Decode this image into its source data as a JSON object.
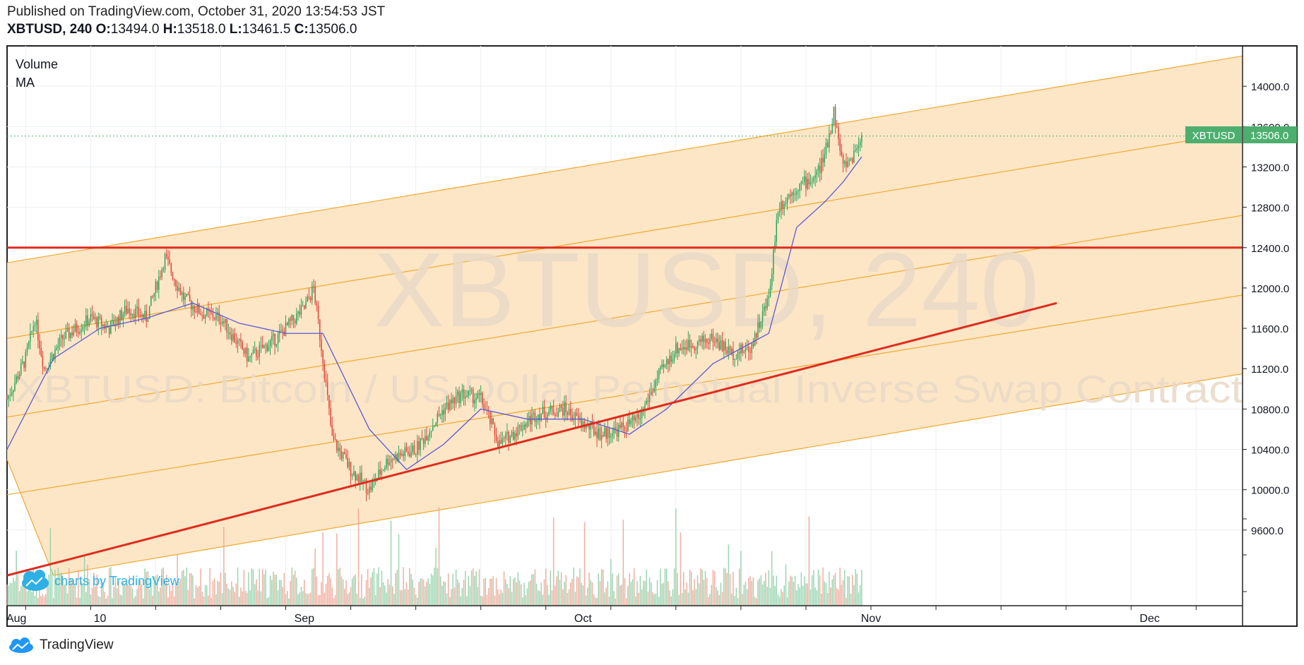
{
  "header": {
    "published": "Published on TradingView.com, October 31, 2020 13:54:53 JST",
    "symbol": "XBTUSD, 240",
    "o_label": "O:",
    "o_value": "13494.0",
    "h_label": "H:",
    "h_value": "13518.0",
    "l_label": "L:",
    "l_value": "13461.5",
    "c_label": "C:",
    "c_value": "13506.0"
  },
  "legend": {
    "volume": "Volume",
    "ma": "MA"
  },
  "watermark": {
    "symbol": "XBTUSD, 240",
    "description": "XBTUSD: Bitcoin / US Dollar Perpetual Inverse Swap Contract"
  },
  "price_label": {
    "symbol": "XBTUSD",
    "value": "13506.0"
  },
  "branding": {
    "charts_by": "charts by TradingView",
    "footer": "TradingView"
  },
  "colors": {
    "up": "#26a65b",
    "down": "#e0443a",
    "vol_up": "#8fd1a8",
    "vol_down": "#f0a595",
    "channel_fill": "#fde3c0",
    "channel_line": "#f0a830",
    "trend": "#e02b1e",
    "ma": "#5a5ad8",
    "price_tag": "#4caf6e"
  },
  "chart_data": {
    "type": "candlestick",
    "title": "",
    "xlabel": "",
    "ylabel": "",
    "x_ticks": [
      "Aug",
      "10",
      "Sep",
      "Oct",
      "Nov",
      "Dec"
    ],
    "y_ticks": [
      "9600.0",
      "10000.0",
      "10400.0",
      "10800.0",
      "11200.0",
      "11600.0",
      "12000.0",
      "12400.0",
      "12800.0",
      "13200.0",
      "13600.0",
      "14000.0"
    ],
    "ylim": [
      8850,
      14400
    ],
    "xlim": [
      "2020-07-31",
      "2020-12-11"
    ],
    "last_price": 13506.0,
    "price_path": [
      [
        "2020-07-31",
        10900
      ],
      [
        "2020-08-02",
        11300
      ],
      [
        "2020-08-03",
        11700
      ],
      [
        "2020-08-04",
        11200
      ],
      [
        "2020-08-06",
        11500
      ],
      [
        "2020-08-09",
        11700
      ],
      [
        "2020-08-11",
        11600
      ],
      [
        "2020-08-13",
        11800
      ],
      [
        "2020-08-15",
        11700
      ],
      [
        "2020-08-17",
        12300
      ],
      [
        "2020-08-19",
        11900
      ],
      [
        "2020-08-21",
        11750
      ],
      [
        "2020-08-23",
        11700
      ],
      [
        "2020-08-26",
        11300
      ],
      [
        "2020-08-29",
        11500
      ],
      [
        "2020-09-01",
        11800
      ],
      [
        "2020-09-02",
        12000
      ],
      [
        "2020-09-03",
        11300
      ],
      [
        "2020-09-04",
        10500
      ],
      [
        "2020-09-06",
        10200
      ],
      [
        "2020-09-08",
        10000
      ],
      [
        "2020-09-10",
        10300
      ],
      [
        "2020-09-13",
        10400
      ],
      [
        "2020-09-16",
        10800
      ],
      [
        "2020-09-18",
        10950
      ],
      [
        "2020-09-20",
        10900
      ],
      [
        "2020-09-22",
        10450
      ],
      [
        "2020-09-24",
        10600
      ],
      [
        "2020-09-26",
        10750
      ],
      [
        "2020-09-29",
        10800
      ],
      [
        "2020-10-01",
        10650
      ],
      [
        "2020-10-03",
        10550
      ],
      [
        "2020-10-05",
        10600
      ],
      [
        "2020-10-07",
        10700
      ],
      [
        "2020-10-09",
        11100
      ],
      [
        "2020-10-11",
        11400
      ],
      [
        "2020-10-13",
        11450
      ],
      [
        "2020-10-15",
        11500
      ],
      [
        "2020-10-17",
        11350
      ],
      [
        "2020-10-19",
        11400
      ],
      [
        "2020-10-21",
        11900
      ],
      [
        "2020-10-22",
        12800
      ],
      [
        "2020-10-24",
        13000
      ],
      [
        "2020-10-26",
        13100
      ],
      [
        "2020-10-27",
        13300
      ],
      [
        "2020-10-28",
        13750
      ],
      [
        "2020-10-29",
        13200
      ],
      [
        "2020-10-30",
        13300
      ],
      [
        "2020-10-31",
        13506
      ]
    ],
    "ma_path": [
      [
        "2020-07-31",
        10400
      ],
      [
        "2020-08-05",
        11300
      ],
      [
        "2020-08-10",
        11600
      ],
      [
        "2020-08-15",
        11700
      ],
      [
        "2020-08-20",
        11850
      ],
      [
        "2020-08-25",
        11650
      ],
      [
        "2020-08-30",
        11550
      ],
      [
        "2020-09-03",
        11550
      ],
      [
        "2020-09-08",
        10600
      ],
      [
        "2020-09-12",
        10200
      ],
      [
        "2020-09-16",
        10450
      ],
      [
        "2020-09-20",
        10800
      ],
      [
        "2020-09-25",
        10700
      ],
      [
        "2020-10-01",
        10700
      ],
      [
        "2020-10-06",
        10550
      ],
      [
        "2020-10-10",
        10800
      ],
      [
        "2020-10-15",
        11250
      ],
      [
        "2020-10-19",
        11450
      ],
      [
        "2020-10-21",
        11550
      ],
      [
        "2020-10-24",
        12600
      ],
      [
        "2020-10-27",
        12850
      ],
      [
        "2020-10-29",
        13050
      ],
      [
        "2020-10-31",
        13300
      ]
    ],
    "horizontal_line": 12400,
    "trend_line": {
      "from": [
        "2020-07-31",
        9150
      ],
      "to": [
        "2020-11-21",
        11850
      ]
    },
    "channel": {
      "upper": {
        "from": [
          "2020-07-31",
          12250
        ],
        "to": [
          "2020-12-11",
          14300
        ]
      },
      "lower": {
        "from": [
          "2020-08-05",
          9150
        ],
        "to": [
          "2020-12-11",
          11150
        ]
      },
      "median_lines": [
        {
          "from": [
            "2020-07-31",
            11500
          ],
          "to": [
            "2020-12-11",
            13550
          ]
        },
        {
          "from": [
            "2020-07-31",
            10720
          ],
          "to": [
            "2020-12-11",
            12720
          ]
        },
        {
          "from": [
            "2020-07-31",
            9950
          ],
          "to": [
            "2020-12-11",
            11930
          ]
        }
      ]
    }
  }
}
